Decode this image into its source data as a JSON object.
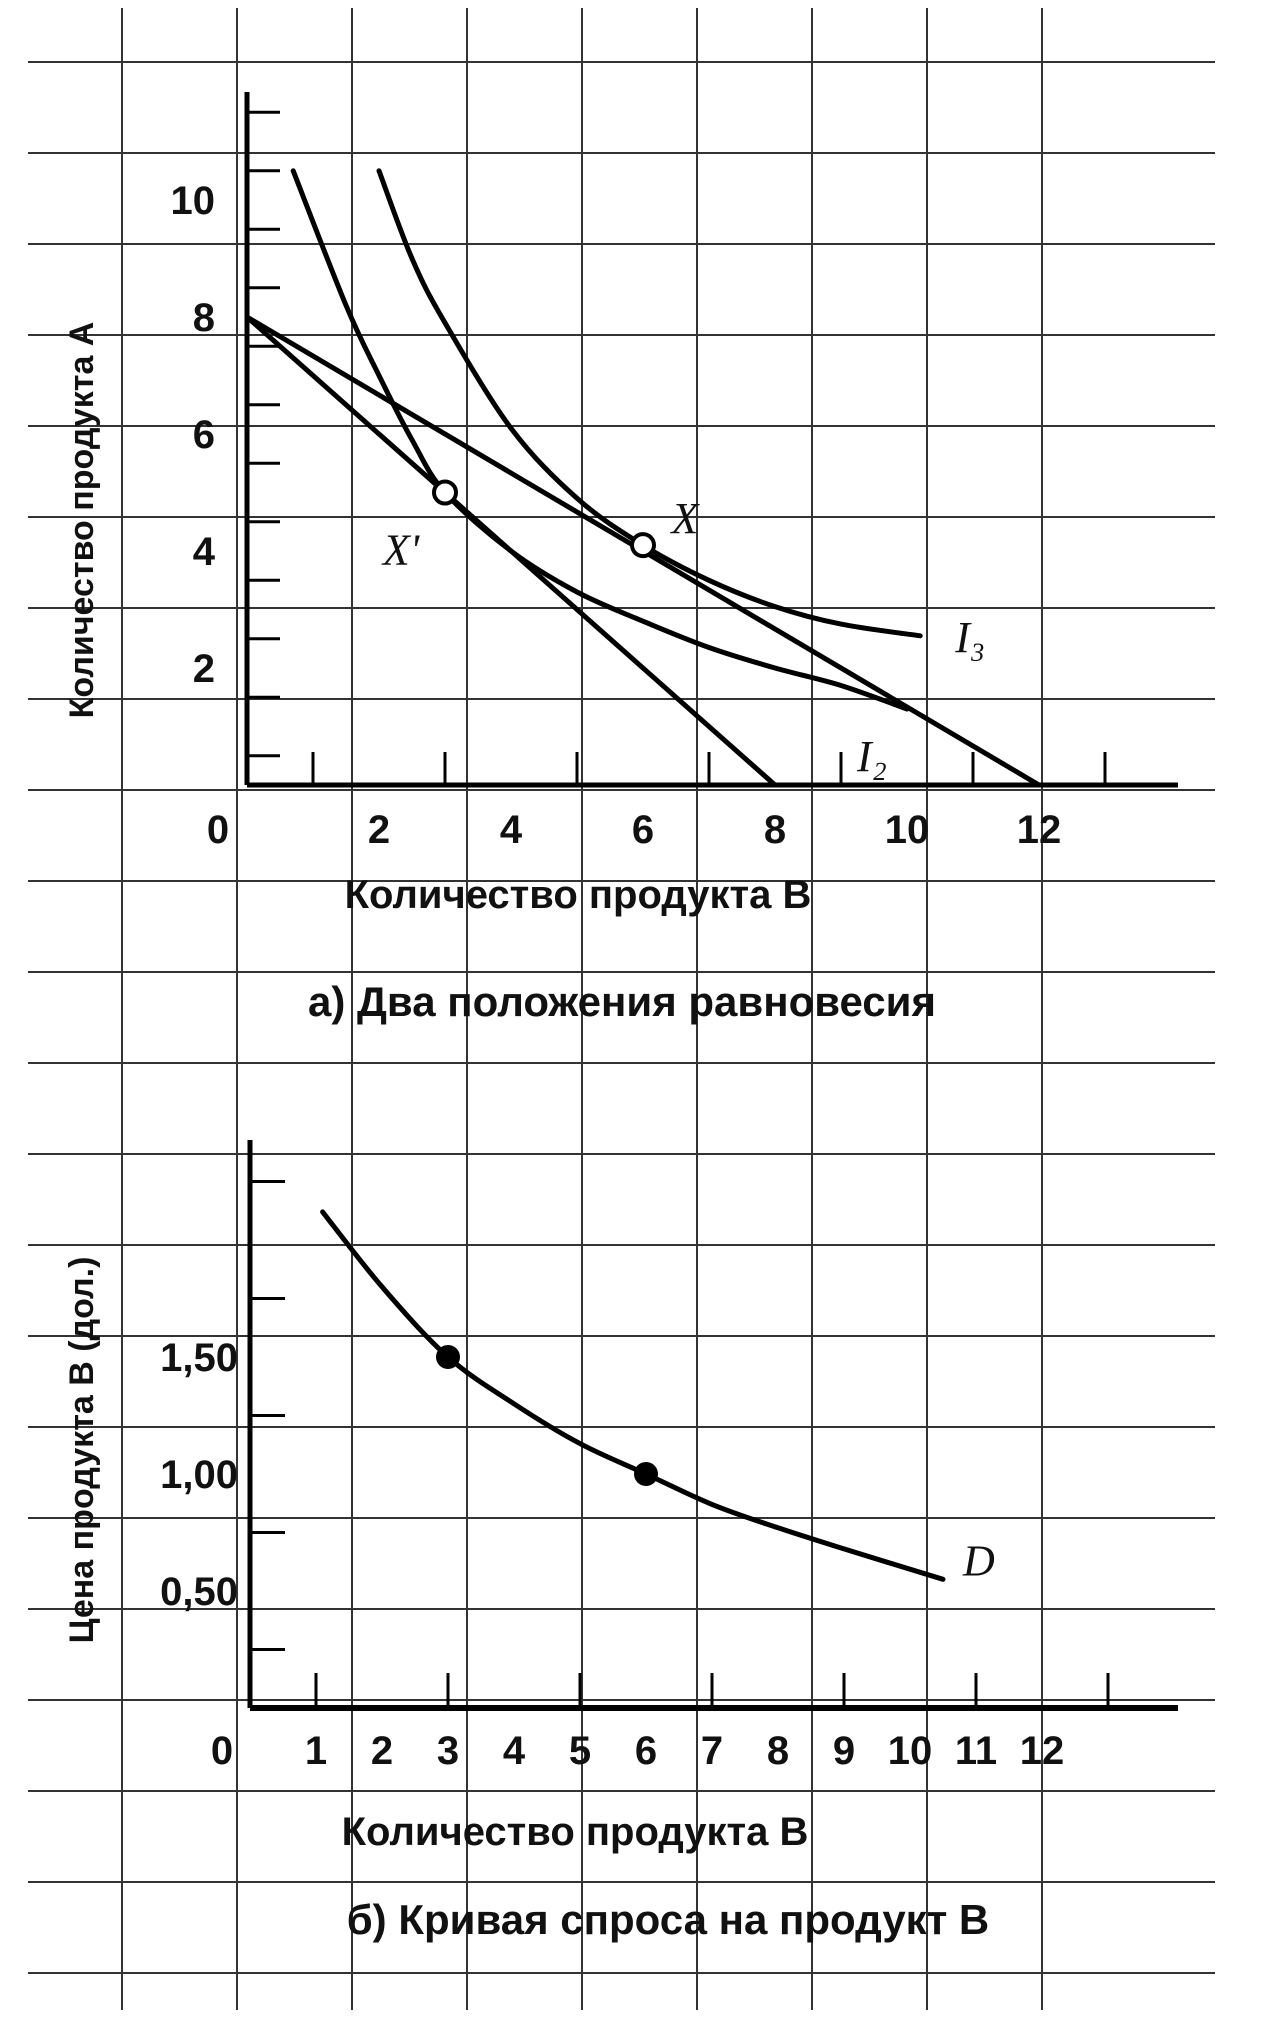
{
  "chart_data": [
    {
      "type": "line",
      "panel": "a",
      "caption": "а)  Два положения равновесия",
      "xlabel": "Количество продукта В",
      "ylabel": "Количество продукта А",
      "xlim": [
        0,
        14
      ],
      "ylim": [
        0,
        12
      ],
      "xticks": [
        "0",
        "2",
        "4",
        "6",
        "8",
        "10",
        "12"
      ],
      "yticks": [
        "2",
        "4",
        "6",
        "8",
        "10"
      ],
      "grid": true,
      "budget_lines": [
        {
          "x": [
            0,
            8
          ],
          "y": [
            8,
            0
          ]
        },
        {
          "x": [
            0,
            12
          ],
          "y": [
            8,
            0
          ]
        }
      ],
      "indifference_curves": [
        {
          "name": "I₂",
          "x": [
            0.7,
            1.5,
            2,
            2.5,
            3,
            4,
            5,
            6,
            7,
            8,
            9,
            10
          ],
          "y": [
            10.5,
            8.2,
            7.0,
            5.9,
            5.0,
            4.0,
            3.3,
            2.8,
            2.35,
            2.0,
            1.7,
            1.3
          ]
        },
        {
          "name": "I₃",
          "x": [
            2,
            2.5,
            3,
            4,
            5,
            6,
            7,
            8,
            9,
            10.2
          ],
          "y": [
            10.5,
            9.0,
            7.9,
            6.1,
            4.9,
            4.1,
            3.5,
            3.05,
            2.75,
            2.55
          ]
        }
      ],
      "points": [
        {
          "label": "X'",
          "x": 3,
          "y": 5
        },
        {
          "label": "X",
          "x": 6,
          "y": 4.1
        }
      ]
    },
    {
      "type": "line",
      "panel": "b",
      "caption": "б)  Кривая спроса на продукт В",
      "xlabel": "Количество продукта В",
      "ylabel": "Цена продукта В  (дол.)",
      "xlim": [
        0,
        14
      ],
      "ylim": [
        0,
        2.5
      ],
      "xticks": [
        "0",
        "1",
        "2",
        "3",
        "4",
        "5",
        "6",
        "7",
        "8",
        "9",
        "10",
        "11",
        "12"
      ],
      "yticks": [
        "0,50",
        "1,00",
        "1,50"
      ],
      "grid": true,
      "series": [
        {
          "name": "D",
          "x": [
            1.1,
            2,
            3,
            4,
            5,
            6,
            7,
            8,
            9,
            10.5
          ],
          "y": [
            2.12,
            1.8,
            1.5,
            1.3,
            1.13,
            1.0,
            0.87,
            0.77,
            0.68,
            0.55
          ]
        }
      ],
      "points": [
        {
          "x": 3,
          "y": 1.5
        },
        {
          "x": 6,
          "y": 1.0
        }
      ]
    }
  ]
}
